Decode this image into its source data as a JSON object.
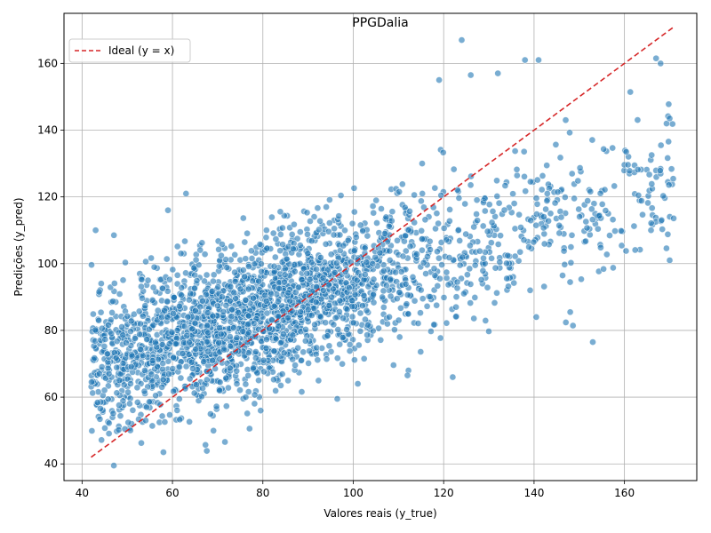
{
  "chart_data": {
    "type": "scatter",
    "title": "PPGDalia",
    "xlabel": "Valores reais (y_true)",
    "ylabel": "Predições (y_pred)",
    "xlim": [
      36,
      176
    ],
    "ylim": [
      35,
      175
    ],
    "xticks": [
      40,
      60,
      80,
      100,
      120,
      140,
      160
    ],
    "yticks": [
      40,
      60,
      80,
      100,
      120,
      140,
      160
    ],
    "grid": true,
    "legend": {
      "placement": "upper-left",
      "entries": [
        "Ideal (y = x)"
      ]
    },
    "ideal_line": {
      "name": "Ideal (y = x)",
      "x": [
        42,
        171
      ],
      "y": [
        42,
        171
      ],
      "color": "#d62728",
      "dash": true
    },
    "point_color": "#1f77b4",
    "point_cloud": {
      "count": 2600,
      "x_range": [
        42,
        171
      ],
      "density_peak_x": 75,
      "trend": {
        "slope": 0.42,
        "intercept": 52
      },
      "spread_sd": 11
    },
    "outlier_points": [
      {
        "x": 124,
        "y": 167
      },
      {
        "x": 138,
        "y": 161
      },
      {
        "x": 141,
        "y": 161
      },
      {
        "x": 168,
        "y": 160
      },
      {
        "x": 167,
        "y": 161.5
      },
      {
        "x": 132,
        "y": 157
      },
      {
        "x": 126,
        "y": 156.5
      },
      {
        "x": 119,
        "y": 155
      },
      {
        "x": 153,
        "y": 76.5
      },
      {
        "x": 112,
        "y": 66.5
      },
      {
        "x": 122,
        "y": 66
      },
      {
        "x": 101,
        "y": 64
      },
      {
        "x": 58,
        "y": 43.5
      },
      {
        "x": 43,
        "y": 110
      },
      {
        "x": 59,
        "y": 116
      },
      {
        "x": 63,
        "y": 121
      },
      {
        "x": 170,
        "y": 101
      },
      {
        "x": 170,
        "y": 143.5
      },
      {
        "x": 147,
        "y": 143
      },
      {
        "x": 148,
        "y": 85.5
      }
    ]
  }
}
